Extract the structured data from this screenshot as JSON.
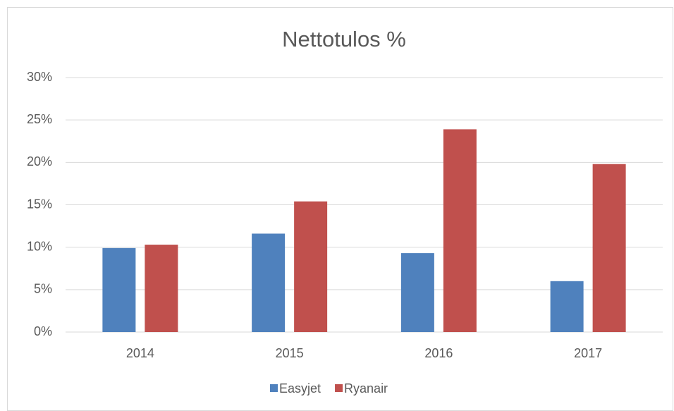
{
  "chart_data": {
    "type": "bar",
    "title": "Nettotulos %",
    "categories": [
      "2014",
      "2015",
      "2016",
      "2017"
    ],
    "series": [
      {
        "name": "Easyjet",
        "color": "#4f81bd",
        "values": [
          9.9,
          11.6,
          9.3,
          6.0
        ]
      },
      {
        "name": "Ryanair",
        "color": "#c0504d",
        "values": [
          10.3,
          15.4,
          23.9,
          19.8
        ]
      }
    ],
    "ylim": [
      0,
      30
    ],
    "yticks": [
      {
        "value": 0,
        "label": "0%"
      },
      {
        "value": 5,
        "label": "5%"
      },
      {
        "value": 10,
        "label": "10%"
      },
      {
        "value": 15,
        "label": "15%"
      },
      {
        "value": 20,
        "label": "20%"
      },
      {
        "value": 25,
        "label": "25%"
      },
      {
        "value": 30,
        "label": "30%"
      }
    ],
    "grid": true,
    "legend": "bottom"
  }
}
